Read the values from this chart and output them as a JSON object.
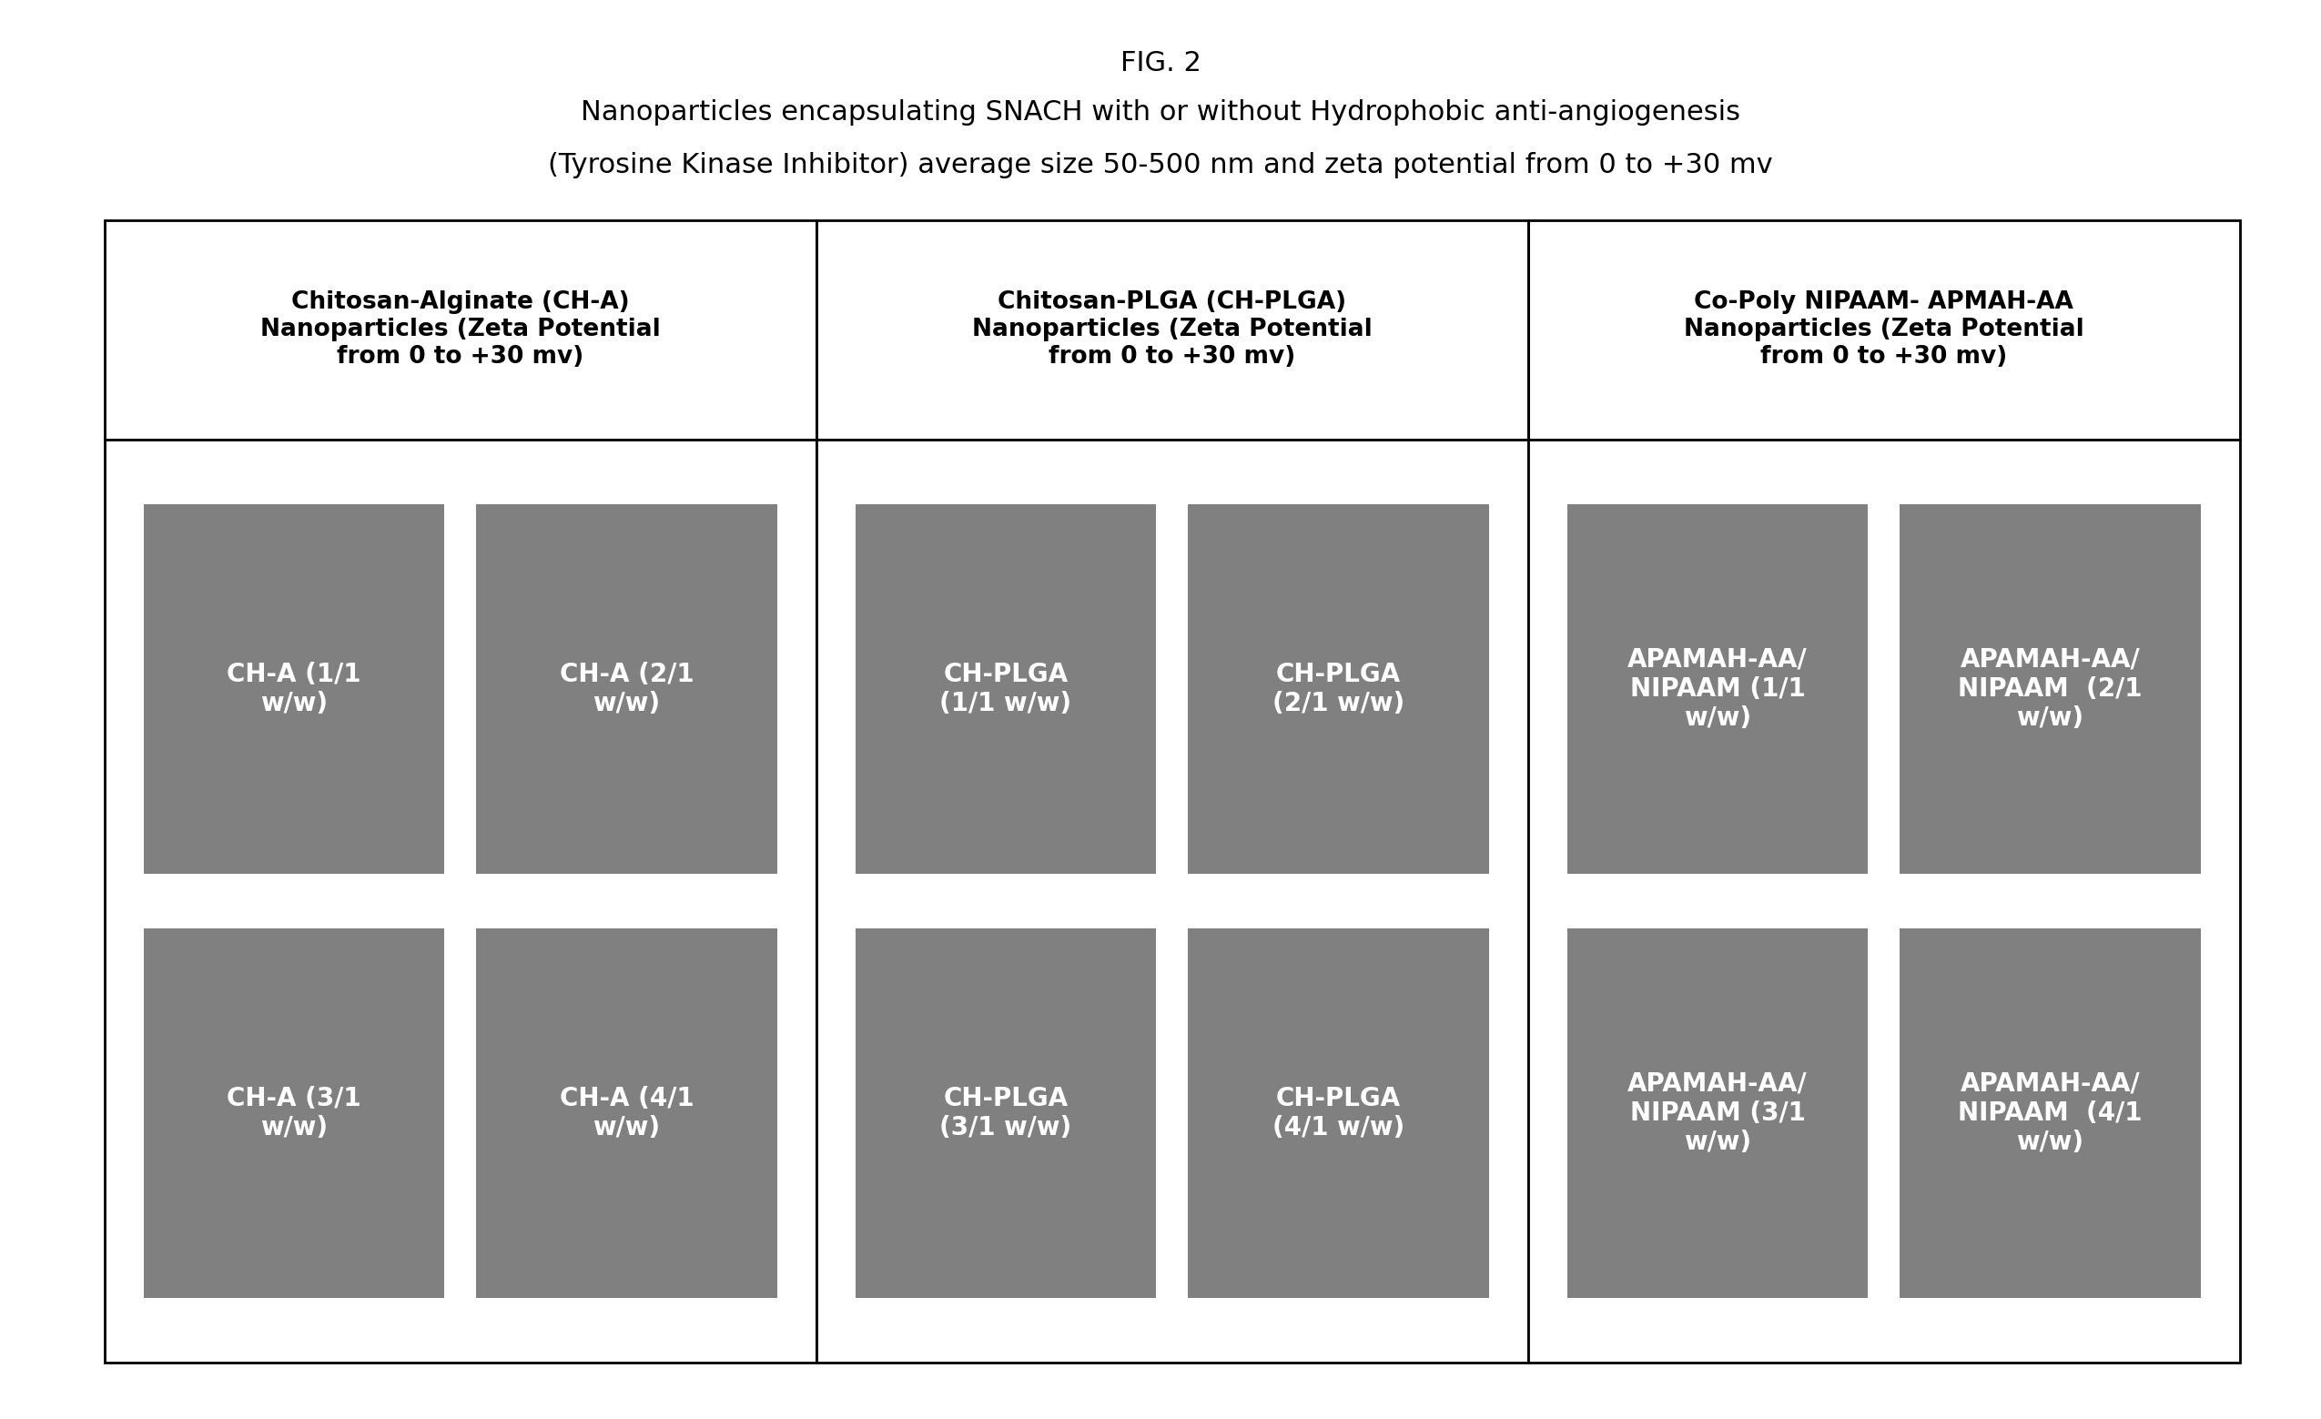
{
  "fig_label": "FIG. 2",
  "title_line1": "Nanoparticles encapsulating SNACH with or without Hydrophobic anti-angiogenesis",
  "title_line2": "(Tyrosine Kinase Inhibitor) average size 50-500 nm and zeta potential from 0 to +30 mv",
  "columns": [
    {
      "header": "Chitosan-Alginate (CH-A)\nNanoparticles (Zeta Potential\nfrom 0 to +30 mv)",
      "cells": [
        [
          "CH-A (1/1\nw/w)",
          "CH-A (2/1\nw/w)"
        ],
        [
          "CH-A (3/1\nw/w)",
          "CH-A (4/1\nw/w)"
        ]
      ]
    },
    {
      "header": "Chitosan-PLGA (CH-PLGA)\nNanoparticles (Zeta Potential\nfrom 0 to +30 mv)",
      "cells": [
        [
          "CH-PLGA\n(1/1 w/w)",
          "CH-PLGA\n(2/1 w/w)"
        ],
        [
          "CH-PLGA\n(3/1 w/w)",
          "CH-PLGA\n(4/1 w/w)"
        ]
      ]
    },
    {
      "header": "Co-Poly NIPAAM- APMAH-AA\nNanoparticles (Zeta Potential\nfrom 0 to +30 mv)",
      "cells": [
        [
          "APAMAH-AA/\nNIPAAM (1/1\nw/w)",
          "APAMAH-AA/\nNIPAAM  (2/1\nw/w)"
        ],
        [
          "APAMAH-AA/\nNIPAAM (3/1\nw/w)",
          "APAMAH-AA/\nNIPAAM  (4/1\nw/w)"
        ]
      ]
    }
  ],
  "background_color": "#ffffff",
  "header_bg_color": "#ffffff",
  "cell_bg_color": "#808080",
  "cell_text_color": "#ffffff",
  "header_text_color": "#000000",
  "border_color": "#000000",
  "fig_label_fontsize": 22,
  "title_fontsize": 22,
  "header_fontsize": 19,
  "cell_fontsize": 20
}
